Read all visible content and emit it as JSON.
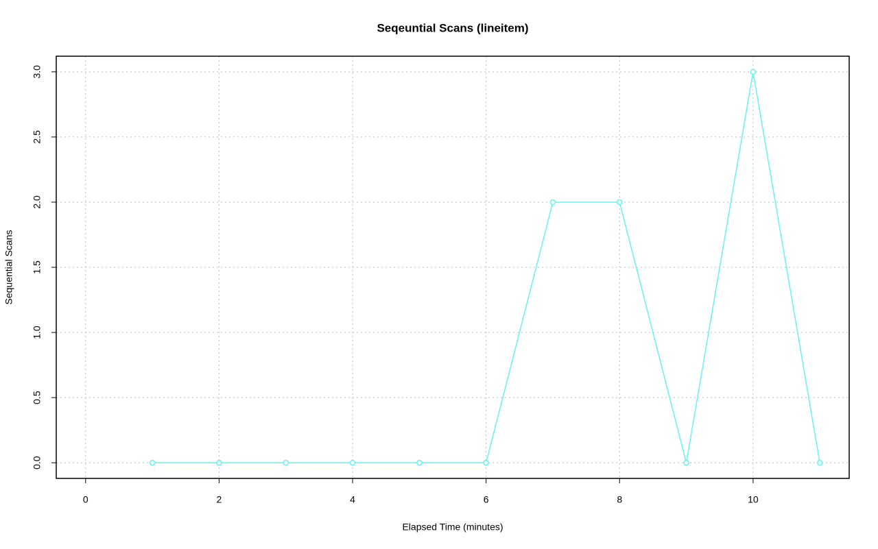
{
  "chart_data": {
    "type": "line",
    "title": "Seqeuntial Scans (lineitem)",
    "xlabel": "Elapsed Time (minutes)",
    "ylabel": "Sequential Scans",
    "x": [
      1,
      2,
      3,
      4,
      5,
      6,
      7,
      8,
      9,
      10,
      11
    ],
    "values": [
      0,
      0,
      0,
      0,
      0,
      0,
      2,
      2,
      0,
      3,
      0
    ],
    "color": "#66f2f2",
    "xlim": [
      -0.44,
      11.44
    ],
    "xticks": [
      0,
      2,
      4,
      6,
      8,
      10
    ],
    "ylim": [
      -0.12,
      3.12
    ],
    "yticks": [
      {
        "value": 0,
        "label": "0.0"
      },
      {
        "value": 0.5,
        "label": "0.5"
      },
      {
        "value": 1,
        "label": "1.0"
      },
      {
        "value": 1.5,
        "label": "1.5"
      },
      {
        "value": 2,
        "label": "2.0"
      },
      {
        "value": 2.5,
        "label": "2.5"
      },
      {
        "value": 3,
        "label": "3.0"
      }
    ],
    "grid": true
  }
}
